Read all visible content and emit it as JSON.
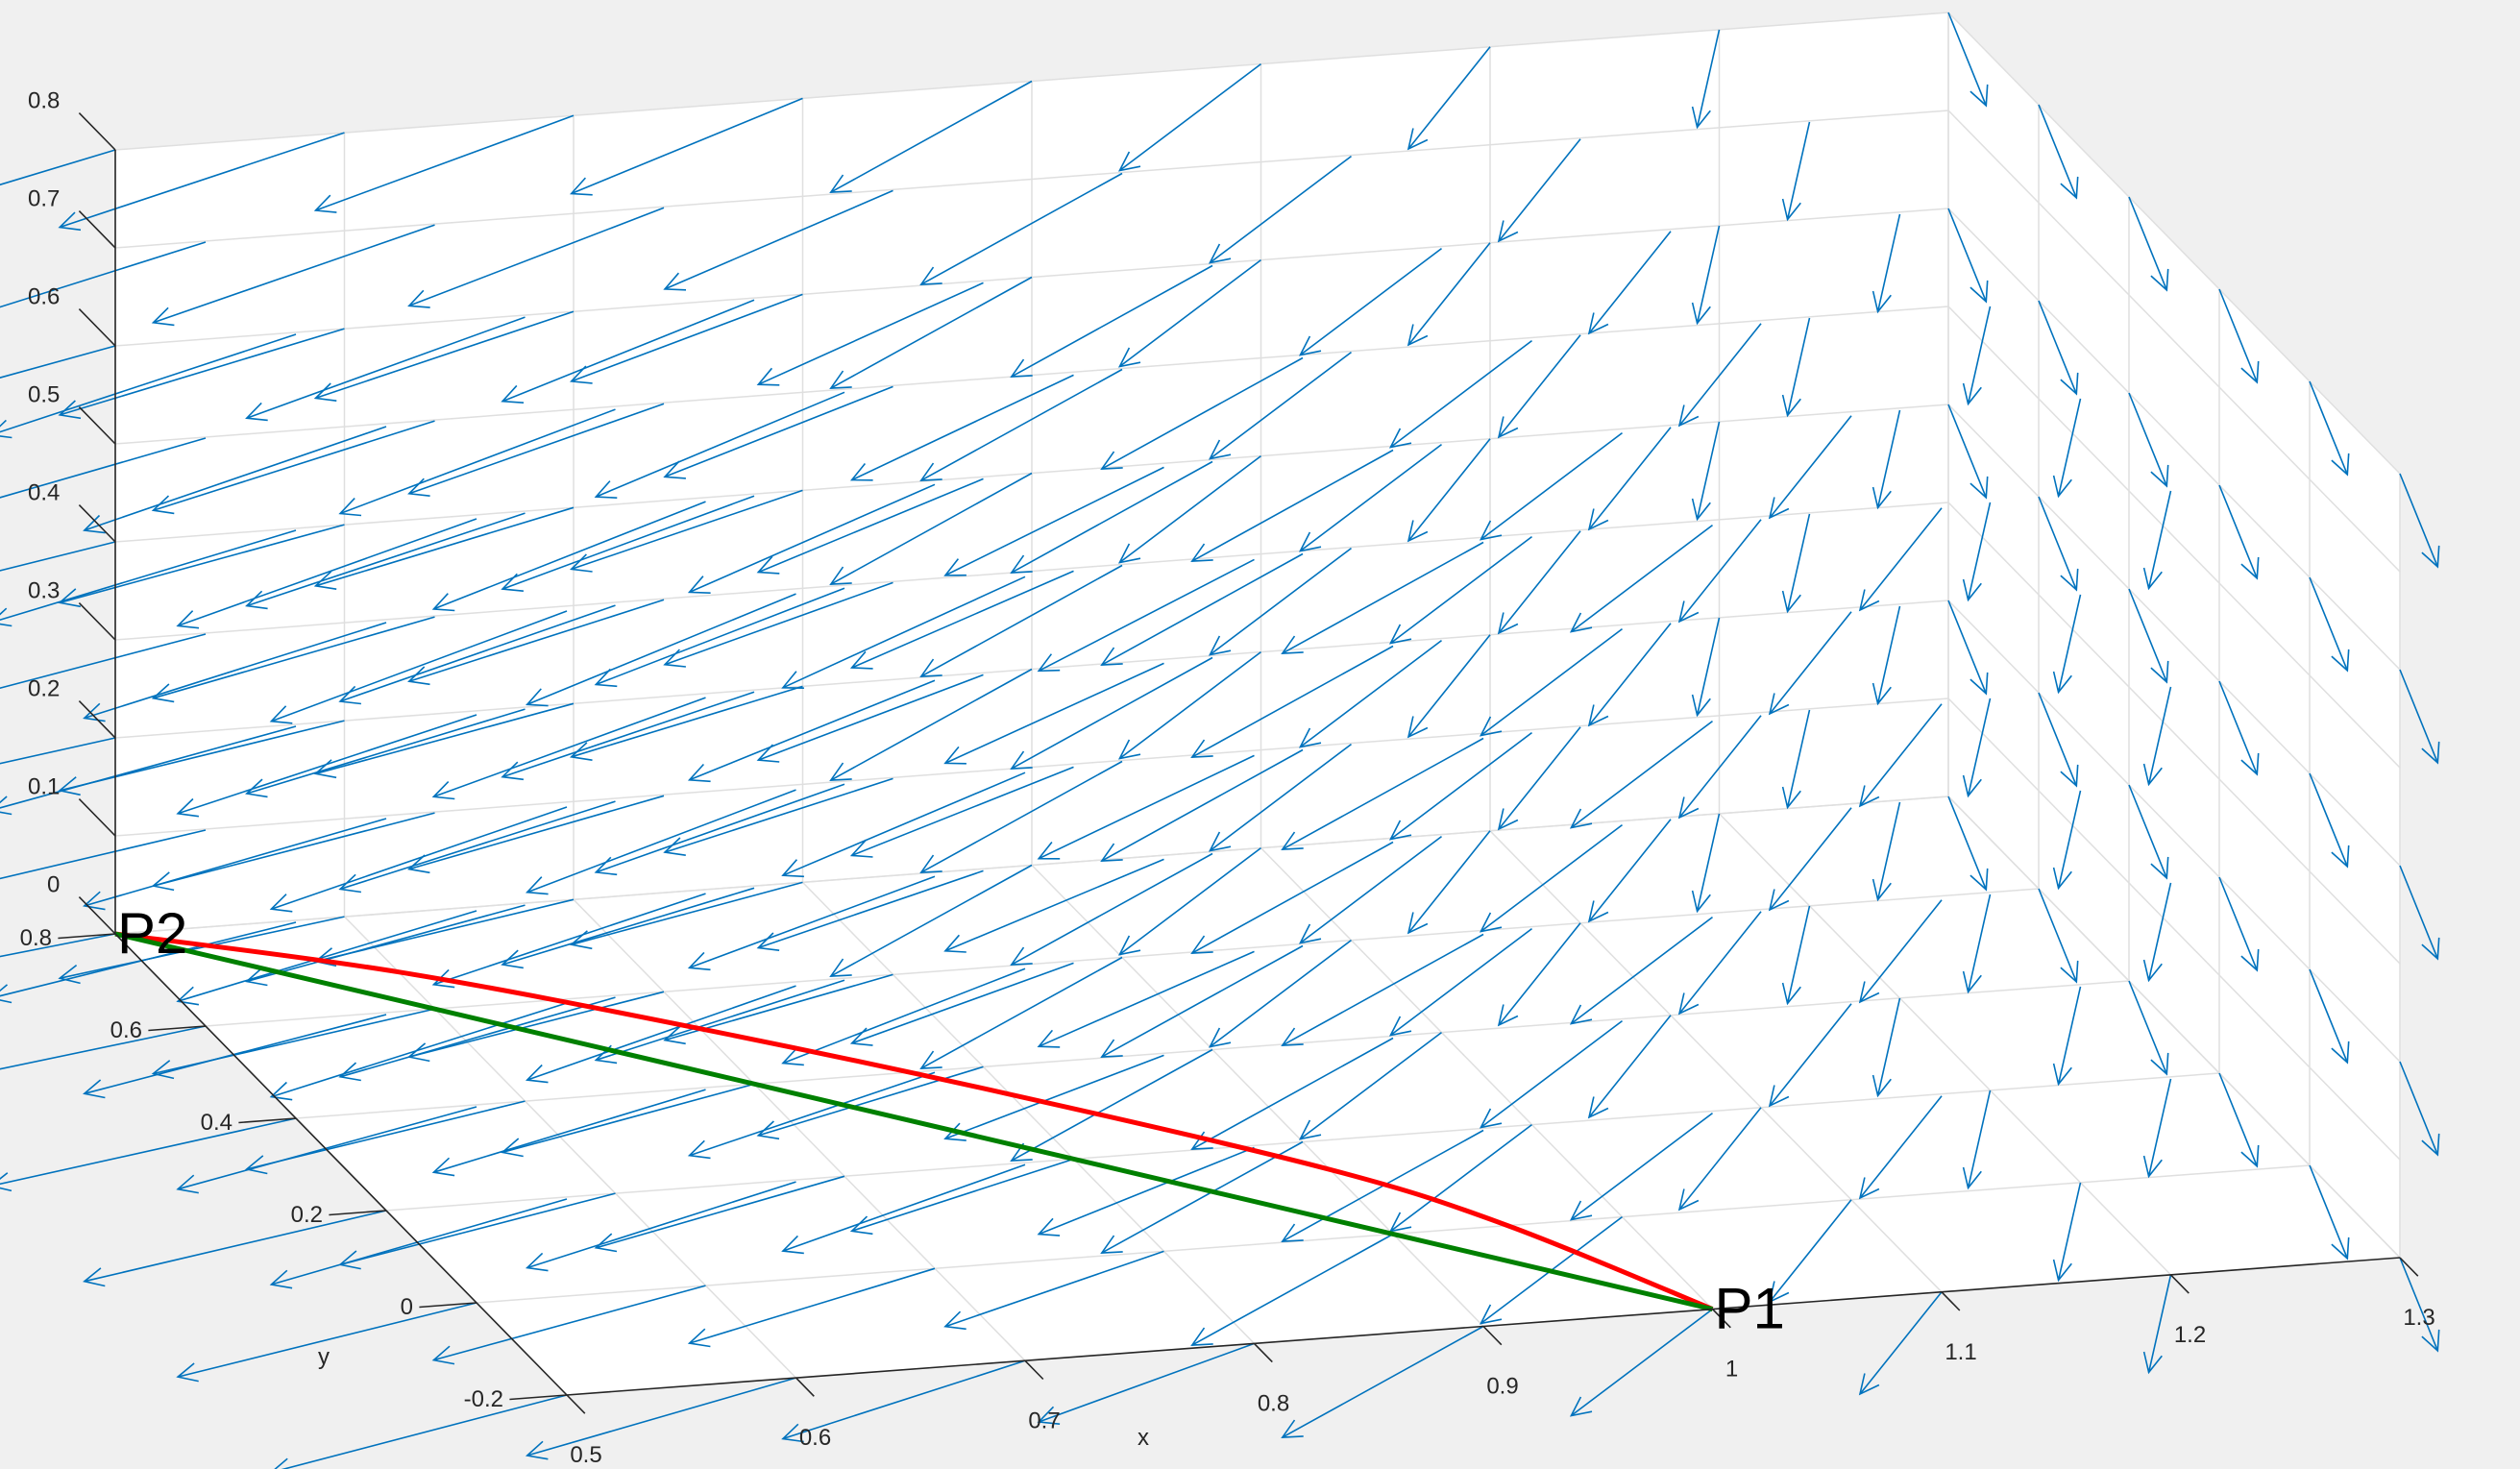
{
  "toolbar": [
    {
      "name": "brush-icon"
    },
    {
      "name": "data-tips-icon"
    },
    {
      "name": "legend-icon"
    },
    {
      "name": "rotate-3d-icon"
    },
    {
      "name": "pan-icon"
    },
    {
      "name": "zoom-in-icon"
    },
    {
      "name": "zoom-out-icon"
    },
    {
      "name": "home-icon"
    }
  ],
  "chart_data": {
    "type": "quiver3d",
    "xlabel": "x",
    "ylabel": "y",
    "zlabel": "",
    "xlim": [
      0.5,
      1.3
    ],
    "ylim": [
      -0.2,
      0.8
    ],
    "zlim": [
      0,
      0.8
    ],
    "xticks": [
      "0.5",
      "0.6",
      "0.7",
      "0.8",
      "0.9",
      "1",
      "1.1",
      "1.2",
      "1.3"
    ],
    "yticks": [
      "-0.2",
      "0",
      "0.2",
      "0.4",
      "0.6",
      "0.8"
    ],
    "zticks": [
      "0",
      "0.1",
      "0.2",
      "0.3",
      "0.4",
      "0.5",
      "0.6",
      "0.7",
      "0.8"
    ],
    "grid": true,
    "quiver_color": "#0072BD",
    "quiver_grid": {
      "x_start": 0.5,
      "x_step": 0.1,
      "x_count": 9,
      "y_start": -0.2,
      "y_step": 0.2,
      "y_count": 6,
      "z_start": 0,
      "z_step": 0.2,
      "z_count": 5
    },
    "points": [
      {
        "label": "P1",
        "x": 1.0,
        "y": -0.2,
        "z": 0
      },
      {
        "label": "P2",
        "x": 0.5,
        "y": 0.8,
        "z": 0
      }
    ],
    "curves": [
      {
        "color": "#FF0000",
        "type": "arc",
        "x": [
          1.0,
          0.95,
          0.9,
          0.8,
          0.7,
          0.6,
          0.5
        ],
        "y": [
          -0.2,
          0.0,
          0.14,
          0.34,
          0.52,
          0.68,
          0.8
        ],
        "z": [
          0,
          0,
          0,
          0,
          0,
          0,
          0
        ]
      },
      {
        "color": "#008000",
        "type": "segment",
        "x": [
          1.0,
          0.5
        ],
        "y": [
          -0.2,
          0.8
        ],
        "z": [
          0,
          0
        ]
      }
    ]
  }
}
